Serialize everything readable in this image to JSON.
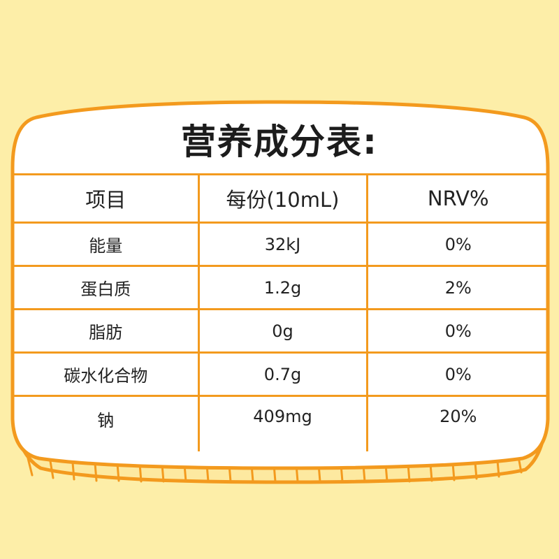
{
  "title": "营养成分表:",
  "table": {
    "headers": [
      "项目",
      "每份(10mL)",
      "NRV%"
    ],
    "rows": [
      [
        "能量",
        "32kJ",
        "0%"
      ],
      [
        "蛋白质",
        "1.2g",
        "2%"
      ],
      [
        "脂肪",
        "0g",
        "0%"
      ],
      [
        "碳水化合物",
        "0.7g",
        "0%"
      ],
      [
        "钠",
        "409mg",
        "20%"
      ]
    ]
  },
  "colors": {
    "background": "#fdeea8",
    "card": "#ffffff",
    "border": "#f39a1e",
    "text": "#222222"
  }
}
